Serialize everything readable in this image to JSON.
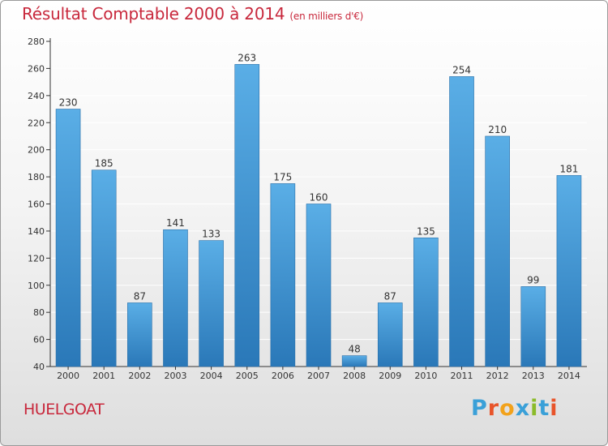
{
  "title": "Résultat Comptable 2000 à 2014",
  "unit": "(en milliers d'€)",
  "location": "HUELGOAT",
  "logo": {
    "text": "Proxiti",
    "letters": [
      {
        "char": "P",
        "color": "#3aa0d8"
      },
      {
        "char": "r",
        "color": "#e8542a"
      },
      {
        "char": "o",
        "color": "#f2a21b"
      },
      {
        "char": "x",
        "color": "#3aa0d8"
      },
      {
        "char": "i",
        "color": "#8bbb2a"
      },
      {
        "char": "t",
        "color": "#3aa0d8"
      },
      {
        "char": "i",
        "color": "#e8542a"
      }
    ]
  },
  "colors": {
    "bar_light": "#5aaee6",
    "bar_dark": "#2a78b8",
    "title": "#c8283c",
    "grid": "#ffffff"
  },
  "chart_data": {
    "type": "bar",
    "categories": [
      "2000",
      "2001",
      "2002",
      "2003",
      "2004",
      "2005",
      "2006",
      "2007",
      "2008",
      "2009",
      "2010",
      "2011",
      "2012",
      "2013",
      "2014"
    ],
    "values": [
      230,
      185,
      87,
      141,
      133,
      263,
      175,
      160,
      48,
      87,
      135,
      254,
      210,
      99,
      181
    ],
    "ylim": [
      40,
      280
    ],
    "yticks": [
      40,
      60,
      80,
      100,
      120,
      140,
      160,
      180,
      200,
      220,
      240,
      260,
      280
    ],
    "grid": true,
    "data_labels": true
  }
}
